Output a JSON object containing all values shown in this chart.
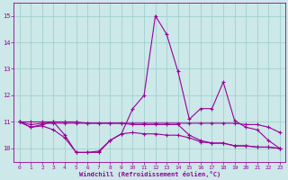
{
  "xlabel": "Windchill (Refroidissement éolien,°C)",
  "xlim": [
    -0.5,
    23.5
  ],
  "ylim": [
    9.5,
    15.5
  ],
  "yticks": [
    10,
    11,
    12,
    13,
    14,
    15
  ],
  "xticks": [
    0,
    1,
    2,
    3,
    4,
    5,
    6,
    7,
    8,
    9,
    10,
    11,
    12,
    13,
    14,
    15,
    16,
    17,
    18,
    19,
    20,
    21,
    22,
    23
  ],
  "bg_color": "#cce8e8",
  "line_color": "#990099",
  "grid_color": "#99cccc",
  "lines": [
    {
      "x": [
        0,
        1,
        2,
        3,
        4,
        5,
        6,
        7,
        8,
        9,
        10,
        11,
        12,
        13,
        14,
        15,
        16,
        17,
        18,
        19,
        20,
        21,
        22,
        23
      ],
      "y": [
        11.0,
        10.8,
        10.9,
        11.0,
        10.5,
        9.85,
        9.85,
        9.85,
        10.3,
        10.55,
        11.5,
        12.0,
        15.0,
        14.3,
        12.9,
        11.1,
        11.5,
        11.5,
        12.5,
        11.05,
        10.8,
        10.7,
        10.3,
        10.0
      ]
    },
    {
      "x": [
        0,
        1,
        2,
        3,
        4,
        5,
        6,
        7,
        8,
        9,
        10,
        11,
        12,
        13,
        14,
        15,
        16,
        17,
        18,
        19,
        20,
        21,
        22,
        23
      ],
      "y": [
        11.0,
        11.0,
        11.0,
        11.0,
        11.0,
        11.0,
        10.95,
        10.95,
        10.95,
        10.95,
        10.95,
        10.95,
        10.95,
        10.95,
        10.95,
        10.95,
        10.95,
        10.95,
        10.95,
        10.95,
        10.9,
        10.9,
        10.8,
        10.6
      ]
    },
    {
      "x": [
        0,
        1,
        2,
        3,
        4,
        5,
        6,
        7,
        8,
        9,
        10,
        11,
        12,
        13,
        14,
        15,
        16,
        17,
        18,
        19,
        20,
        21,
        22,
        23
      ],
      "y": [
        11.0,
        10.9,
        10.95,
        10.95,
        10.95,
        10.95,
        10.95,
        10.95,
        10.95,
        10.95,
        10.9,
        10.9,
        10.9,
        10.9,
        10.9,
        10.5,
        10.3,
        10.2,
        10.2,
        10.1,
        10.1,
        10.05,
        10.05,
        10.0
      ]
    },
    {
      "x": [
        0,
        1,
        2,
        3,
        4,
        5,
        6,
        7,
        8,
        9,
        10,
        11,
        12,
        13,
        14,
        15,
        16,
        17,
        18,
        19,
        20,
        21,
        22,
        23
      ],
      "y": [
        11.0,
        10.8,
        10.85,
        10.7,
        10.4,
        9.85,
        9.85,
        9.9,
        10.3,
        10.55,
        10.6,
        10.55,
        10.55,
        10.5,
        10.5,
        10.4,
        10.25,
        10.2,
        10.2,
        10.1,
        10.1,
        10.05,
        10.05,
        10.0
      ]
    }
  ]
}
